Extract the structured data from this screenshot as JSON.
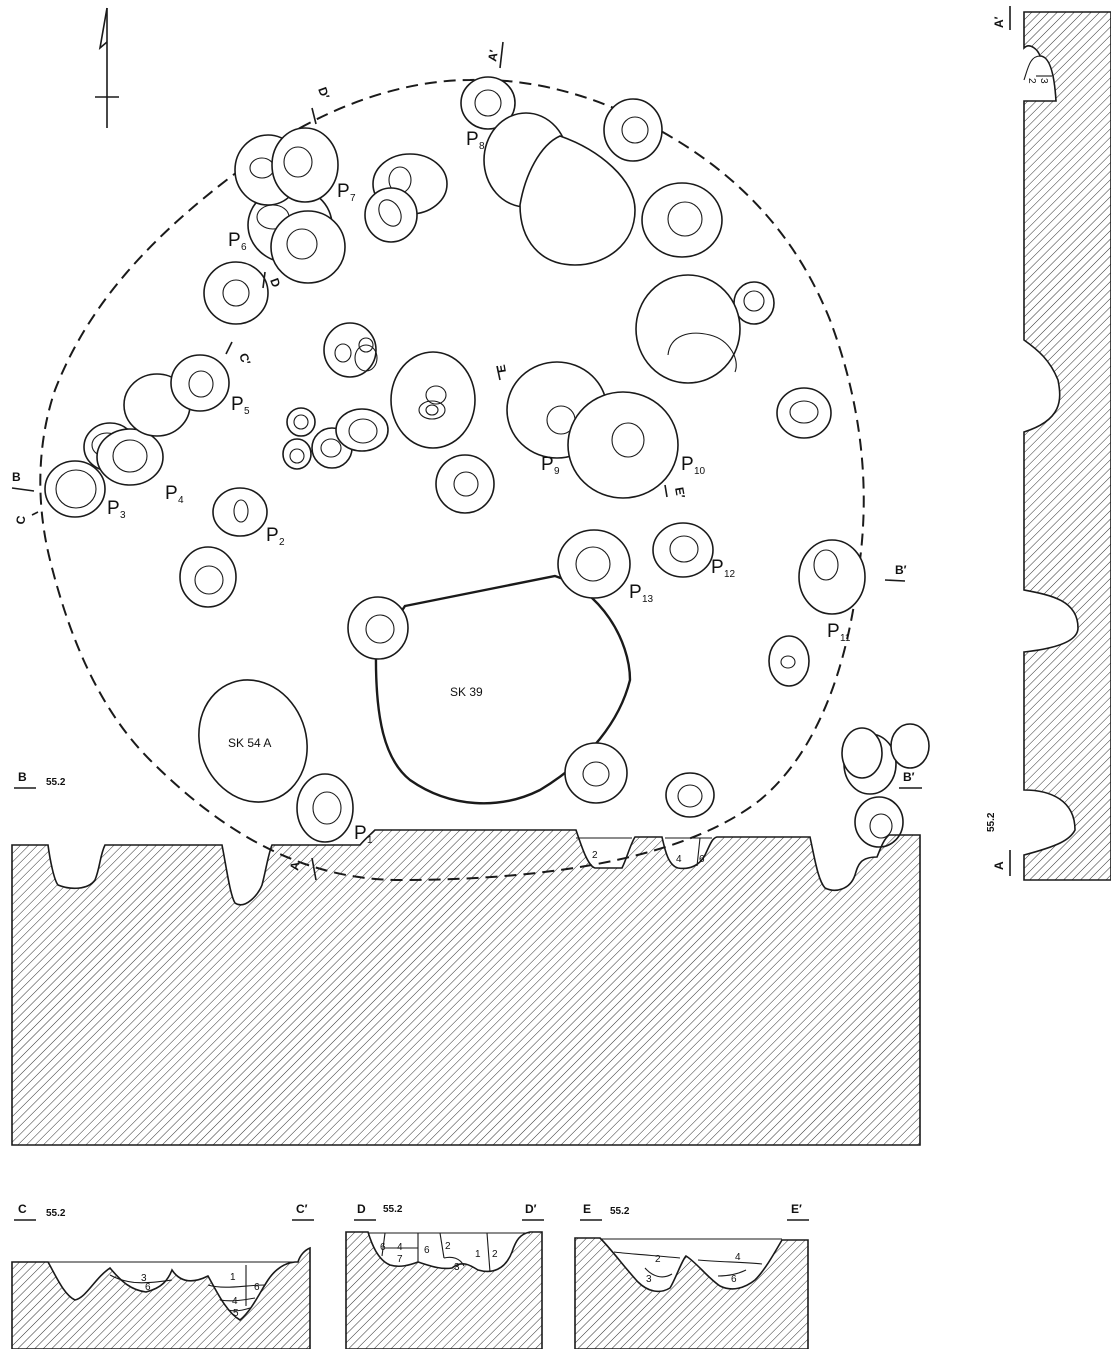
{
  "plan": {
    "posts": [
      {
        "id": "p1",
        "letter": "P",
        "num": "1"
      },
      {
        "id": "p2",
        "letter": "P",
        "num": "2"
      },
      {
        "id": "p3",
        "letter": "P",
        "num": "3"
      },
      {
        "id": "p4",
        "letter": "P",
        "num": "4"
      },
      {
        "id": "p5",
        "letter": "P",
        "num": "5"
      },
      {
        "id": "p6",
        "letter": "P",
        "num": "6"
      },
      {
        "id": "p7",
        "letter": "P",
        "num": "7"
      },
      {
        "id": "p8",
        "letter": "P",
        "num": "8"
      },
      {
        "id": "p9",
        "letter": "P",
        "num": "9"
      },
      {
        "id": "p10",
        "letter": "P",
        "num": "10"
      },
      {
        "id": "p11",
        "letter": "P",
        "num": "11"
      },
      {
        "id": "p12",
        "letter": "P",
        "num": "12"
      },
      {
        "id": "p13",
        "letter": "P",
        "num": "13"
      }
    ],
    "features": {
      "sk39": "SK 39",
      "sk54a": "SK 54 A"
    },
    "section_markers": {
      "a": "A",
      "a_prime": "A′",
      "b": "B",
      "b_prime": "B′",
      "c": "C",
      "c_prime": "C′",
      "d": "D",
      "d_prime": "D′",
      "e": "E",
      "e_prime": "E′"
    }
  },
  "sections": {
    "aa": {
      "start": "A",
      "end": "A′",
      "elevation": "55.2",
      "layers": [
        "2",
        "3"
      ]
    },
    "bb": {
      "start": "B",
      "end": "B′",
      "elevation": "55.2",
      "layers": [
        "2",
        "4",
        "6"
      ]
    },
    "cc": {
      "start": "C",
      "end": "C′",
      "elevation": "55.2",
      "layers": [
        "3",
        "6",
        "1",
        "6",
        "4",
        "5"
      ]
    },
    "dd": {
      "start": "D",
      "end": "D′",
      "elevation": "55.2",
      "layers": [
        "6",
        "4",
        "7",
        "6",
        "2",
        "3",
        "1",
        "2"
      ]
    },
    "ee": {
      "start": "E",
      "end": "E′",
      "elevation": "55.2",
      "layers": [
        "2",
        "3",
        "4",
        "6"
      ]
    }
  }
}
